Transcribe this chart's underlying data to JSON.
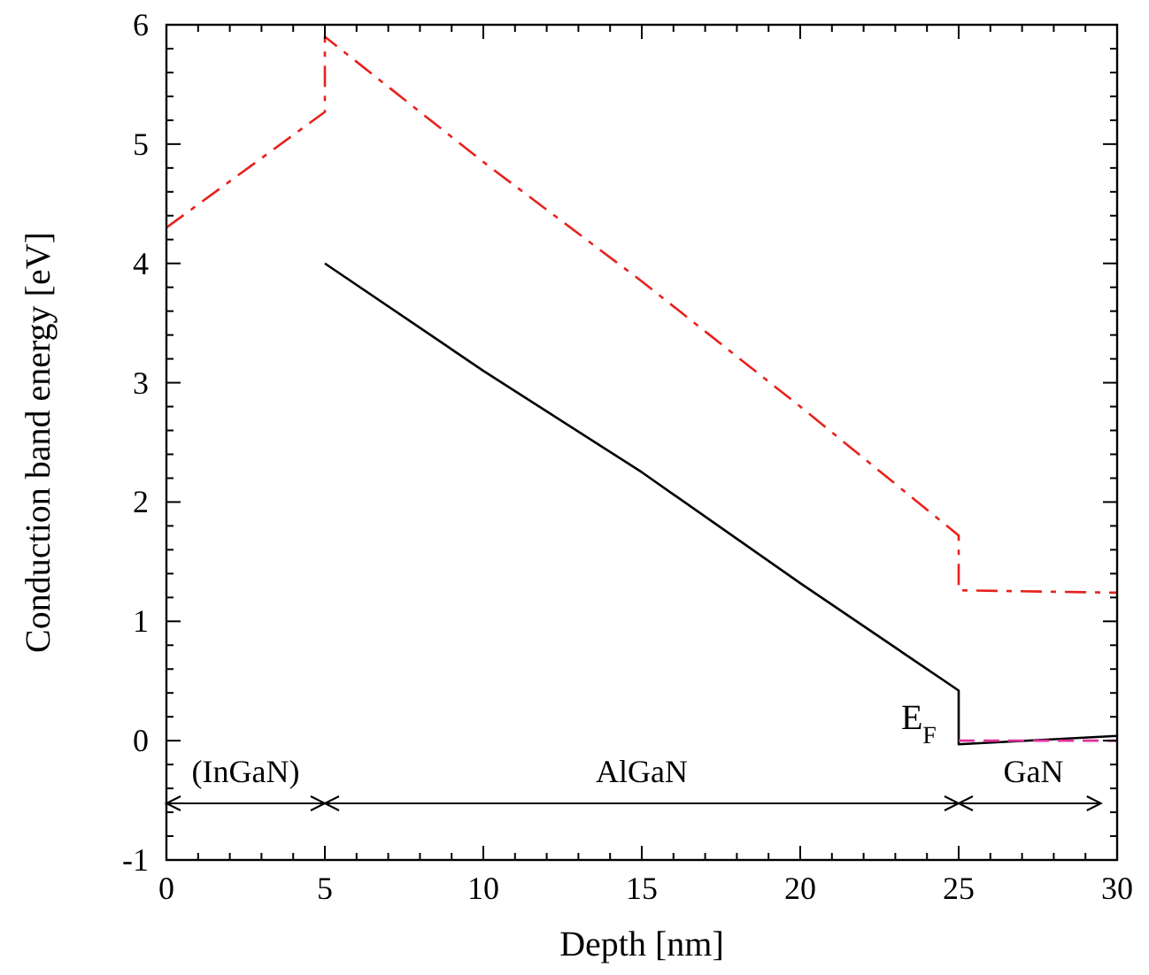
{
  "chart_data": {
    "type": "line",
    "xlabel": "Depth [nm]",
    "ylabel": "Conduction band energy [eV]",
    "xlim": [
      0,
      30
    ],
    "ylim": [
      -1,
      6
    ],
    "xticks": [
      0,
      {
        "value": 1,
        "label": null
      },
      {
        "value": 2,
        "label": null
      },
      {
        "value": 3,
        "label": null
      },
      {
        "value": 4,
        "label": null
      },
      5,
      {
        "value": 6,
        "label": null
      },
      {
        "value": 7,
        "label": null
      },
      {
        "value": 8,
        "label": null
      },
      {
        "value": 9,
        "label": null
      },
      10,
      {
        "value": 11,
        "label": null
      },
      {
        "value": 12,
        "label": null
      },
      {
        "value": 13,
        "label": null
      },
      {
        "value": 14,
        "label": null
      },
      15,
      {
        "value": 16,
        "label": null
      },
      {
        "value": 17,
        "label": null
      },
      {
        "value": 18,
        "label": null
      },
      {
        "value": 19,
        "label": null
      },
      20,
      {
        "value": 21,
        "label": null
      },
      {
        "value": 22,
        "label": null
      },
      {
        "value": 23,
        "label": null
      },
      {
        "value": 24,
        "label": null
      },
      25,
      {
        "value": 26,
        "label": null
      },
      {
        "value": 27,
        "label": null
      },
      {
        "value": 28,
        "label": null
      },
      {
        "value": 29,
        "label": null
      },
      30
    ],
    "yticks": [
      -1,
      {
        "value": -0.8,
        "label": null
      },
      {
        "value": -0.6,
        "label": null
      },
      {
        "value": -0.4,
        "label": null
      },
      {
        "value": -0.2,
        "label": null
      },
      0,
      {
        "value": 0.2,
        "label": null
      },
      {
        "value": 0.4,
        "label": null
      },
      {
        "value": 0.6,
        "label": null
      },
      {
        "value": 0.8,
        "label": null
      },
      1,
      {
        "value": 1.2,
        "label": null
      },
      {
        "value": 1.4,
        "label": null
      },
      {
        "value": 1.6,
        "label": null
      },
      {
        "value": 1.8,
        "label": null
      },
      2,
      {
        "value": 2.2,
        "label": null
      },
      {
        "value": 2.4,
        "label": null
      },
      {
        "value": 2.6,
        "label": null
      },
      {
        "value": 2.8,
        "label": null
      },
      3,
      {
        "value": 3.2,
        "label": null
      },
      {
        "value": 3.4,
        "label": null
      },
      {
        "value": 3.6,
        "label": null
      },
      {
        "value": 3.8,
        "label": null
      },
      4,
      {
        "value": 4.2,
        "label": null
      },
      {
        "value": 4.4,
        "label": null
      },
      {
        "value": 4.6,
        "label": null
      },
      {
        "value": 4.8,
        "label": null
      },
      5,
      {
        "value": 5.2,
        "label": null
      },
      {
        "value": 5.4,
        "label": null
      },
      {
        "value": 5.6,
        "label": null
      },
      {
        "value": 5.8,
        "label": null
      },
      6
    ],
    "grid": false,
    "series": [
      {
        "color": "#e8211c",
        "line_style": "dashdot",
        "x": [
          0,
          5,
          5,
          10,
          15,
          20,
          25,
          25,
          30
        ],
        "values": [
          4.3,
          5.27,
          5.9,
          4.85,
          3.85,
          2.8,
          1.72,
          1.26,
          1.24
        ]
      },
      {
        "color": "#000000",
        "line_style": "solid",
        "x": [
          5,
          10,
          15,
          20,
          25,
          25,
          30
        ],
        "values": [
          4.0,
          3.1,
          2.25,
          1.32,
          0.42,
          -0.03,
          0.04
        ]
      },
      {
        "color": "#e0309a",
        "line_style": "dashed",
        "x": [
          25,
          30
        ],
        "values": [
          0,
          0
        ]
      }
    ],
    "annotations": [
      "(InGaN)",
      "AlGaN",
      "GaN",
      "E$_{F}$"
    ]
  }
}
